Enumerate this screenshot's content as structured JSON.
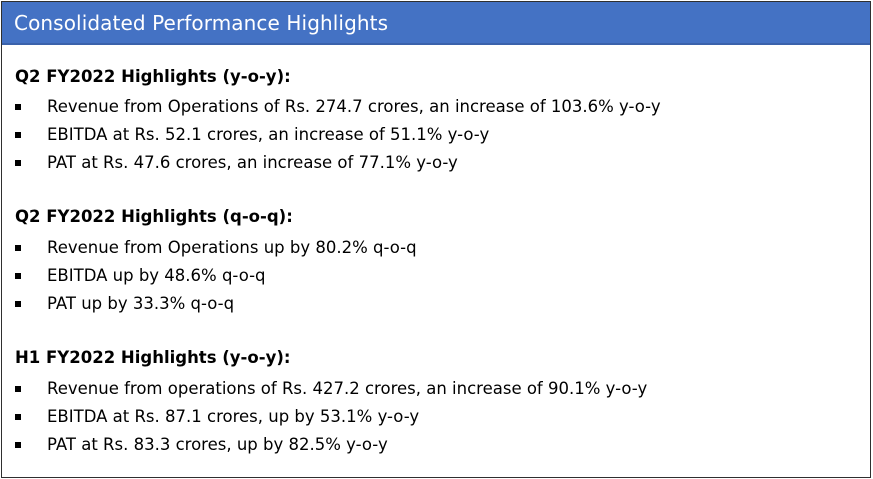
{
  "header": {
    "title": "Consolidated Performance Highlights",
    "background": "#4472c4"
  },
  "sections": [
    {
      "heading": "Q2 FY2022 Highlights (y-o-y):",
      "items": [
        "Revenue from Operations of Rs. 274.7 crores, an increase of 103.6% y-o-y",
        "EBITDA at Rs. 52.1 crores, an increase of 51.1% y-o-y",
        "PAT at Rs. 47.6 crores, an increase of 77.1% y-o-y"
      ]
    },
    {
      "heading": "Q2 FY2022 Highlights (q-o-q):",
      "items": [
        "Revenue from Operations up by 80.2% q-o-q",
        "EBITDA up by 48.6% q-o-q",
        "PAT up by 33.3% q-o-q"
      ]
    },
    {
      "heading": "H1 FY2022 Highlights (y-o-y):",
      "items": [
        "Revenue from operations of Rs. 427.2 crores, an increase of 90.1% y-o-y",
        "EBITDA at Rs. 87.1 crores, up by 53.1% y-o-y",
        "PAT at Rs. 83.3 crores, up by 82.5% y-o-y"
      ]
    }
  ]
}
